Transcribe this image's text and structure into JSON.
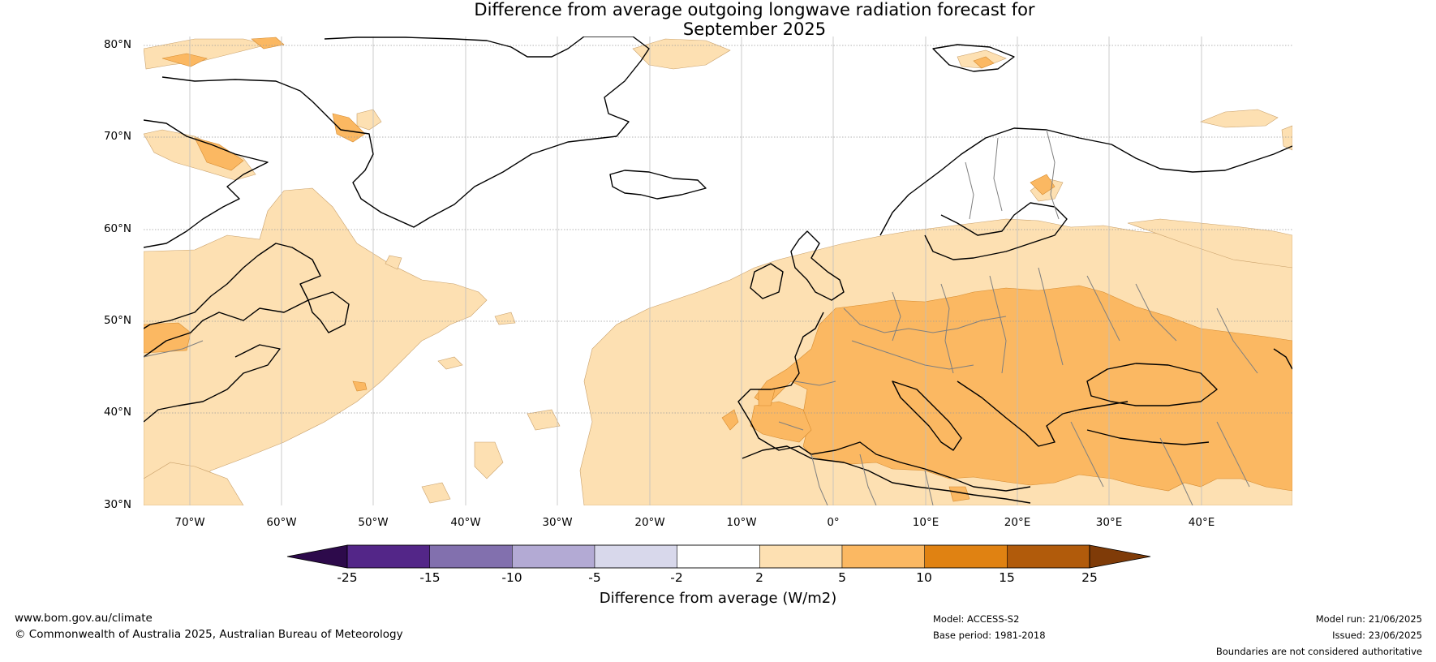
{
  "title": {
    "line1": "Difference from average outgoing longwave radiation forecast for",
    "line2": "September 2025"
  },
  "map": {
    "lat_ticks": [
      "80°N",
      "70°N",
      "60°N",
      "50°N",
      "40°N",
      "30°N"
    ],
    "lon_ticks": [
      "70°W",
      "60°W",
      "50°W",
      "40°W",
      "30°W",
      "20°W",
      "10°W",
      "0°",
      "10°E",
      "20°E",
      "30°E",
      "40°E"
    ],
    "colors": {
      "ocean": "#ffffff",
      "land_outline": "#000000",
      "border": "#808080",
      "light_anomaly": "#fde0b2",
      "moderate_anomaly": "#fbb862"
    }
  },
  "colorbar": {
    "title": "Difference from average (W/m2)",
    "ticks": [
      "-25",
      "-15",
      "-10",
      "-5",
      "-2",
      "2",
      "5",
      "10",
      "15",
      "25"
    ],
    "colors": {
      "below_min": "#2d0a4b",
      "bins": [
        "#532688",
        "#8270ae",
        "#b3aad4",
        "#d8d8eb",
        "#ffffff",
        "#fde0b2",
        "#fbb862",
        "#e08212",
        "#b15b0b"
      ],
      "above_max": "#7f3b08"
    }
  },
  "footer": {
    "website": "www.bom.gov.au/climate",
    "copyright": "© Commonwealth of Australia 2025, Australian Bureau of Meteorology",
    "model": "Model: ACCESS-S2",
    "base_period": "Base period: 1981-2018",
    "model_run": "Model run: 21/06/2025",
    "issued": "Issued: 23/06/2025",
    "disclaimer": "Boundaries are not considered authoritative"
  }
}
